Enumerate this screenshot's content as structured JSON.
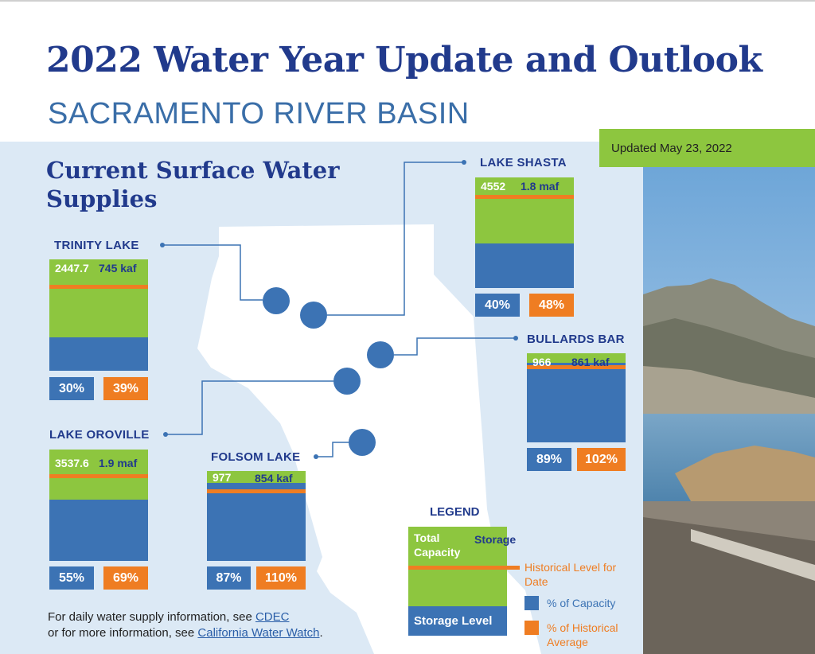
{
  "title": "2022 Water Year Update and Outlook",
  "subtitle": "SACRAMENTO RIVER BASIN",
  "updated": "Updated May 23, 2022",
  "section_title": "Current Surface Water Supplies",
  "colors": {
    "capacity": "#8dc63f",
    "storage": "#3c73b4",
    "historical": "#ef7d22",
    "heading": "#213a8c",
    "map_background": "#dce9f5"
  },
  "reservoirs": [
    {
      "id": "trinity",
      "name": "TRINITY LAKE",
      "capacity": "2447.7",
      "storage": "745 kaf",
      "pct_capacity": "30%",
      "pct_historical": "39%",
      "storage_fraction": 0.3,
      "historical_fraction": 0.77
    },
    {
      "id": "shasta",
      "name": "LAKE SHASTA",
      "capacity": "4552",
      "storage": "1.8 maf",
      "pct_capacity": "40%",
      "pct_historical": "48%",
      "storage_fraction": 0.4,
      "historical_fraction": 0.84
    },
    {
      "id": "bullards",
      "name": "BULLARDS BAR",
      "capacity": "966",
      "storage": "861 kaf",
      "pct_capacity": "89%",
      "pct_historical": "102%",
      "storage_fraction": 0.89,
      "historical_fraction": 0.87
    },
    {
      "id": "oroville",
      "name": "LAKE OROVILLE",
      "capacity": "3537.6",
      "storage": "1.9 maf",
      "pct_capacity": "55%",
      "pct_historical": "69%",
      "storage_fraction": 0.55,
      "historical_fraction": 0.78
    },
    {
      "id": "folsom",
      "name": "FOLSOM LAKE",
      "capacity": "977",
      "storage": "854 kaf",
      "pct_capacity": "87%",
      "pct_historical": "110%",
      "storage_fraction": 0.87,
      "historical_fraction": 0.8
    }
  ],
  "legend": {
    "title": "LEGEND",
    "total_capacity": "Total Capacity",
    "storage": "Storage",
    "historical_level": "Historical Level for Date",
    "storage_level": "Storage Level",
    "pct_capacity": "% of Capacity",
    "pct_historical": "% of Historical Average"
  },
  "footer": {
    "line1_prefix": "For daily water supply information, see ",
    "link1": "CDEC",
    "line2_prefix": "or for more information, see ",
    "link2": "California Water Watch",
    "line2_suffix": "."
  }
}
